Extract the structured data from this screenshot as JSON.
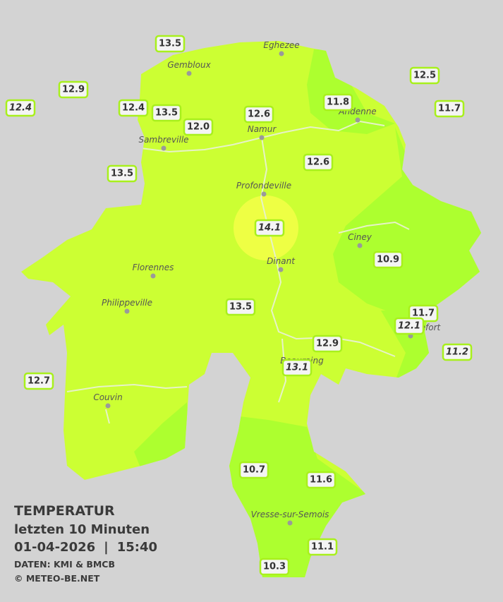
{
  "legend": {
    "title": "TEMPERATUR",
    "period": "letzten 10 Minuten",
    "date": "01-04-2026",
    "separator": "|",
    "time": "15:40",
    "source": "DATEN: KMI & BMCB",
    "copyright": "© METEO-BE.NET"
  },
  "cities": [
    {
      "name": "Eghezee"
    },
    {
      "name": "Gembloux"
    },
    {
      "name": "Andenne"
    },
    {
      "name": "Namur"
    },
    {
      "name": "Sambreville"
    },
    {
      "name": "Profondeville"
    },
    {
      "name": "Ciney"
    },
    {
      "name": "Dinant"
    },
    {
      "name": "Florennes"
    },
    {
      "name": "Philippeville"
    },
    {
      "name": "Rochefort"
    },
    {
      "name": "Beauraing"
    },
    {
      "name": "Couvin"
    },
    {
      "name": "Vresse-sur-Semois"
    }
  ],
  "stations": [
    {
      "value": "13.5",
      "italic": false
    },
    {
      "value": "12.9",
      "italic": false
    },
    {
      "value": "12.4",
      "italic": true
    },
    {
      "value": "12.4",
      "italic": false
    },
    {
      "value": "13.5",
      "italic": false
    },
    {
      "value": "12.0",
      "italic": false
    },
    {
      "value": "12.6",
      "italic": false
    },
    {
      "value": "11.8",
      "italic": false
    },
    {
      "value": "12.5",
      "italic": false
    },
    {
      "value": "11.7",
      "italic": false
    },
    {
      "value": "13.5",
      "italic": false
    },
    {
      "value": "12.6",
      "italic": false
    },
    {
      "value": "14.1",
      "italic": true
    },
    {
      "value": "10.9",
      "italic": false
    },
    {
      "value": "11.7",
      "italic": false
    },
    {
      "value": "12.1",
      "italic": true
    },
    {
      "value": "11.2",
      "italic": true
    },
    {
      "value": "13.5",
      "italic": false
    },
    {
      "value": "12.9",
      "italic": false
    },
    {
      "value": "13.1",
      "italic": true
    },
    {
      "value": "12.7",
      "italic": false
    },
    {
      "value": "10.7",
      "italic": false
    },
    {
      "value": "11.6",
      "italic": false
    },
    {
      "value": "11.1",
      "italic": false
    },
    {
      "value": "10.3",
      "italic": false
    }
  ]
}
